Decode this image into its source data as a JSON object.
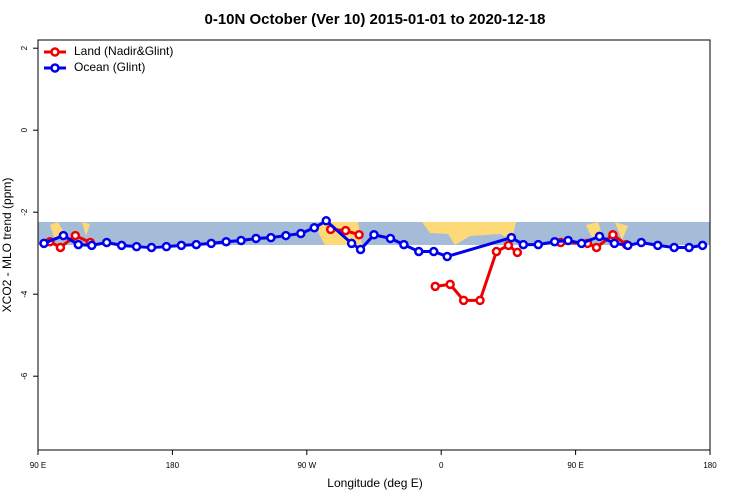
{
  "chart_data": {
    "type": "line",
    "title": "0-10N October (Ver 10)   2015-01-01 to 2020-12-18",
    "x_label": "Longitude (deg E)",
    "y_label": "XCO2 - MLO trend (ppm)",
    "xlim": [
      90,
      540
    ],
    "xticks": [
      {
        "value": 90,
        "label": "90 E"
      },
      180,
      {
        "value": 270,
        "label": "90 W"
      },
      {
        "value": 360,
        "label": "0"
      },
      {
        "value": 450,
        "label": "90 E"
      },
      {
        "value": 540,
        "label": "180"
      }
    ],
    "ylim": [
      -7.8,
      2.2
    ],
    "yticks": [
      2,
      0,
      -2,
      -4,
      -6
    ],
    "legend": "top-left",
    "series": [
      {
        "name": "Land (Nadir&Glint)",
        "color": "#ee0000",
        "x": [
          98,
          105,
          115,
          125,
          null,
          286,
          296,
          305,
          null,
          356,
          366,
          375,
          386,
          397,
          405,
          411,
          null,
          440,
          458,
          464,
          475,
          484
        ],
        "values": [
          -2.72,
          -2.86,
          -2.57,
          -2.74,
          null,
          -2.42,
          -2.45,
          -2.55,
          null,
          -3.81,
          -3.76,
          -4.15,
          -4.15,
          -2.96,
          -2.81,
          -2.98,
          null,
          -2.74,
          -2.76,
          -2.86,
          -2.55,
          -2.79
        ]
      },
      {
        "name": "Ocean (Glint)",
        "color": "#0000ee",
        "x": [
          94,
          107,
          117,
          126,
          136,
          146,
          156,
          166,
          176,
          186,
          196,
          206,
          216,
          226,
          236,
          246,
          256,
          266,
          275,
          283,
          300,
          306,
          315,
          326,
          335,
          345,
          355,
          364,
          407,
          415,
          425,
          436,
          445,
          454,
          466,
          476,
          485,
          494,
          505,
          516,
          526,
          535
        ],
        "values": [
          -2.76,
          -2.57,
          -2.79,
          -2.81,
          -2.74,
          -2.81,
          -2.84,
          -2.86,
          -2.84,
          -2.81,
          -2.79,
          -2.76,
          -2.72,
          -2.69,
          -2.64,
          -2.62,
          -2.57,
          -2.52,
          -2.38,
          -2.21,
          -2.76,
          -2.91,
          -2.55,
          -2.64,
          -2.79,
          -2.96,
          -2.96,
          -3.08,
          -2.62,
          -2.79,
          -2.79,
          -2.72,
          -2.69,
          -2.76,
          -2.59,
          -2.76,
          -2.81,
          -2.74,
          -2.81,
          -2.86,
          -2.86,
          -2.81
        ]
      }
    ]
  }
}
